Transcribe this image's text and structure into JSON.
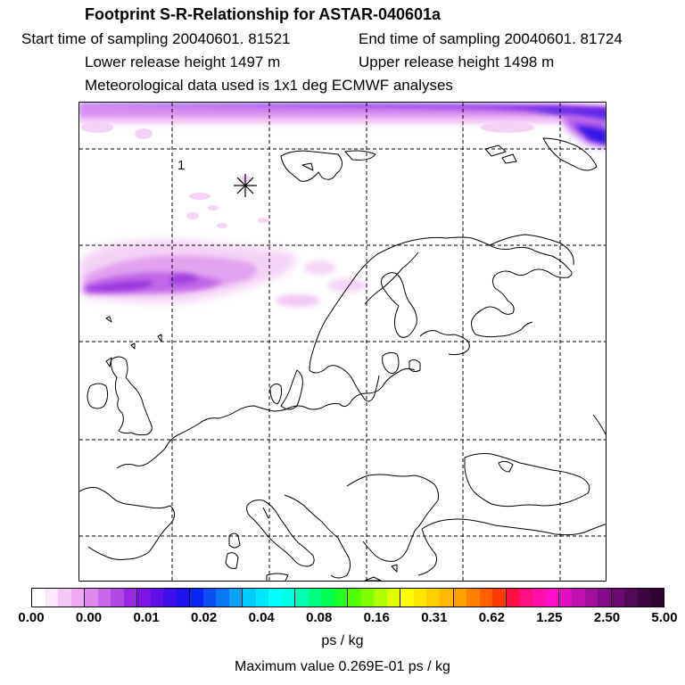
{
  "header": {
    "title": "Footprint S-R-Relationship for ASTAR-040601a",
    "start": "Start time of sampling 20040601. 81521",
    "end": "End time of sampling 20040601. 81724",
    "lower": "Lower release height 1497 m",
    "upper": "Upper release height 1498 m",
    "meteo": "Meteorological data used is 1x1 deg ECMWF analyses"
  },
  "map": {
    "receptor_marker": "asterisk-marker",
    "receptor_label": "1",
    "plume_colors": [
      "#fbe6fb",
      "#f0bff4",
      "#dc96ee",
      "#c466e6",
      "#9d33dc",
      "#7a1fe0",
      "#3a1ae8"
    ]
  },
  "colorbar": {
    "tick_labels": [
      "0.00",
      "0.00",
      "0.01",
      "0.02",
      "0.04",
      "0.08",
      "0.16",
      "0.31",
      "0.62",
      "1.25",
      "2.50",
      "5.00"
    ],
    "colors": [
      "#ffffff",
      "#fce6fb",
      "#f6c8f6",
      "#efa9f2",
      "#df88ee",
      "#c967ea",
      "#b147e5",
      "#9a26e0",
      "#7d14e2",
      "#5e10e6",
      "#3f0fea",
      "#1f12ee",
      "#0a26f2",
      "#0a4ef4",
      "#0a78f6",
      "#0aa2f8",
      "#00ccff",
      "#00e6ff",
      "#00ffff",
      "#00ffe0",
      "#00ffb0",
      "#00ff80",
      "#00ff50",
      "#20ff20",
      "#50ff00",
      "#80ff00",
      "#b0ff00",
      "#e0ff00",
      "#ffff00",
      "#ffe800",
      "#ffd000",
      "#ffb800",
      "#ff9f00",
      "#ff8000",
      "#ff6000",
      "#ff3a00",
      "#ff1040",
      "#ff1080",
      "#ff10a8",
      "#ff10c8",
      "#e010c0",
      "#c010b0",
      "#a0109c",
      "#800c88",
      "#6a0a70",
      "#540858",
      "#3e0640",
      "#300430"
    ],
    "unit": "ps / kg",
    "maximum": "Maximum value  0.269E-01 ps / kg"
  }
}
